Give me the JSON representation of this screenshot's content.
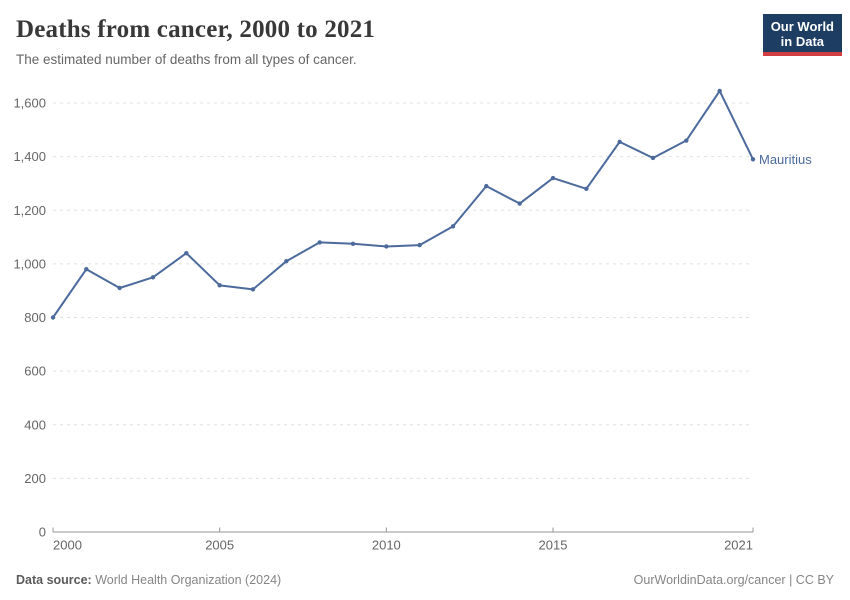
{
  "header": {
    "title": "Deaths from cancer, 2000 to 2021",
    "subtitle": "The estimated number of deaths from all types of cancer.",
    "logo": {
      "line1": "Our World",
      "line2": "in Data"
    }
  },
  "chart_data": {
    "type": "line",
    "title": "Deaths from cancer, 2000 to 2021",
    "xlabel": "",
    "ylabel": "",
    "x": [
      2000,
      2001,
      2002,
      2003,
      2004,
      2005,
      2006,
      2007,
      2008,
      2009,
      2010,
      2011,
      2012,
      2013,
      2014,
      2015,
      2016,
      2017,
      2018,
      2019,
      2020,
      2021
    ],
    "series": [
      {
        "name": "Mauritius",
        "color": "#4C6A9C",
        "values": [
          800,
          980,
          910,
          950,
          1040,
          920,
          905,
          1010,
          1080,
          1075,
          1065,
          1070,
          1140,
          1290,
          1225,
          1320,
          1280,
          1455,
          1395,
          1460,
          1645,
          1390
        ]
      }
    ],
    "xlim": [
      2000,
      2021
    ],
    "ylim": [
      0,
      1600
    ],
    "xticks": [
      2000,
      2005,
      2010,
      2015,
      2021
    ],
    "yticks": [
      0,
      200,
      400,
      600,
      800,
      1000,
      1200,
      1400,
      1600
    ],
    "grid": "horizontal-dashed",
    "legend_position": "end-of-line-label",
    "entity_label": "Mauritius"
  },
  "footer": {
    "datasource_label": "Data source:",
    "datasource_value": "World Health Organization (2024)",
    "link": "OurWorldinData.org/cancer",
    "separator": "|",
    "license": "CC BY"
  },
  "colors": {
    "line": "#4C6A9C",
    "title": "#383838",
    "subtitle": "#666666",
    "tick_label": "#666666",
    "gridline": "#e0e0e0",
    "axis": "#979797",
    "logo_bg": "#1d3d63",
    "logo_accent": "#d13d43",
    "footer_text": "#858585"
  }
}
